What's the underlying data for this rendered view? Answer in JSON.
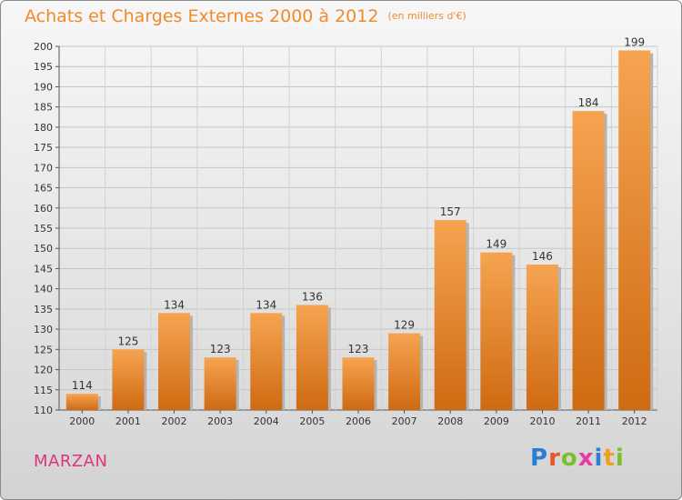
{
  "header": {
    "title": "Achats et Charges Externes 2000 à 2012",
    "subtitle": "(en milliers d'€)"
  },
  "footer": {
    "commune": "MARZAN",
    "logo_text": "Proxiti"
  },
  "colors": {
    "title": "#f08a2a",
    "commune": "#e0347a",
    "bar_light": "#f6a451",
    "bar_dark": "#cf6a12"
  },
  "chart_data": {
    "type": "bar",
    "title": "Achats et Charges Externes 2000 à 2012",
    "categories": [
      "2000",
      "2001",
      "2002",
      "2003",
      "2004",
      "2005",
      "2006",
      "2007",
      "2008",
      "2009",
      "2010",
      "2011",
      "2012"
    ],
    "values": [
      114,
      125,
      134,
      123,
      134,
      136,
      123,
      129,
      157,
      149,
      146,
      184,
      199
    ],
    "ylim": [
      110,
      200
    ],
    "yticks": [
      110,
      115,
      120,
      125,
      130,
      135,
      140,
      145,
      150,
      155,
      160,
      165,
      170,
      175,
      180,
      185,
      190,
      195,
      200
    ],
    "grid": true,
    "data_labels": true
  }
}
